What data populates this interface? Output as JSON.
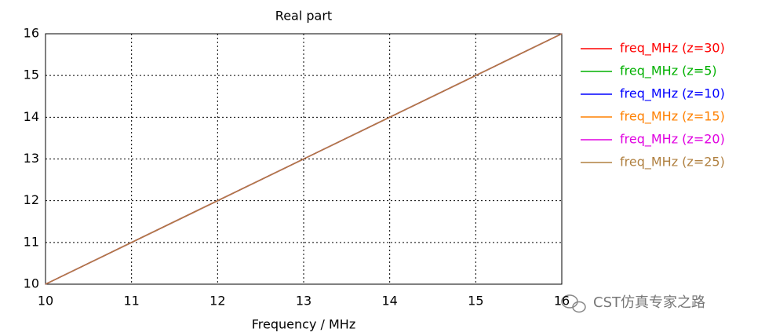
{
  "chart_data": {
    "type": "line",
    "title": "Real part",
    "x_label": "Frequency / MHz",
    "x": [
      10,
      11,
      12,
      13,
      14,
      15,
      16
    ],
    "series": [
      {
        "name": "freq_MHz (z=30)",
        "color": "#ff0000",
        "values": [
          10,
          11,
          12,
          13,
          14,
          15,
          16
        ]
      },
      {
        "name": "freq_MHz (z=5)",
        "color": "#00b000",
        "values": [
          10,
          11,
          12,
          13,
          14,
          15,
          16
        ]
      },
      {
        "name": "freq_MHz (z=10)",
        "color": "#0000ff",
        "values": [
          10,
          11,
          12,
          13,
          14,
          15,
          16
        ]
      },
      {
        "name": "freq_MHz (z=15)",
        "color": "#ff8000",
        "values": [
          10,
          11,
          12,
          13,
          14,
          15,
          16
        ]
      },
      {
        "name": "freq_MHz (z=20)",
        "color": "#e000e0",
        "values": [
          10,
          11,
          12,
          13,
          14,
          15,
          16
        ]
      },
      {
        "name": "freq_MHz (z=25)",
        "color": "#b08040",
        "values": [
          10,
          11,
          12,
          13,
          14,
          15,
          16
        ]
      }
    ],
    "xlim": [
      10,
      16
    ],
    "xticks": [
      10,
      11,
      12,
      13,
      14,
      15,
      16
    ],
    "ylim": [
      10,
      16
    ],
    "yticks": [
      10,
      11,
      12,
      13,
      14,
      15,
      16
    ],
    "grid": true,
    "legend": "right",
    "watermark": "CST仿真专家之路"
  }
}
